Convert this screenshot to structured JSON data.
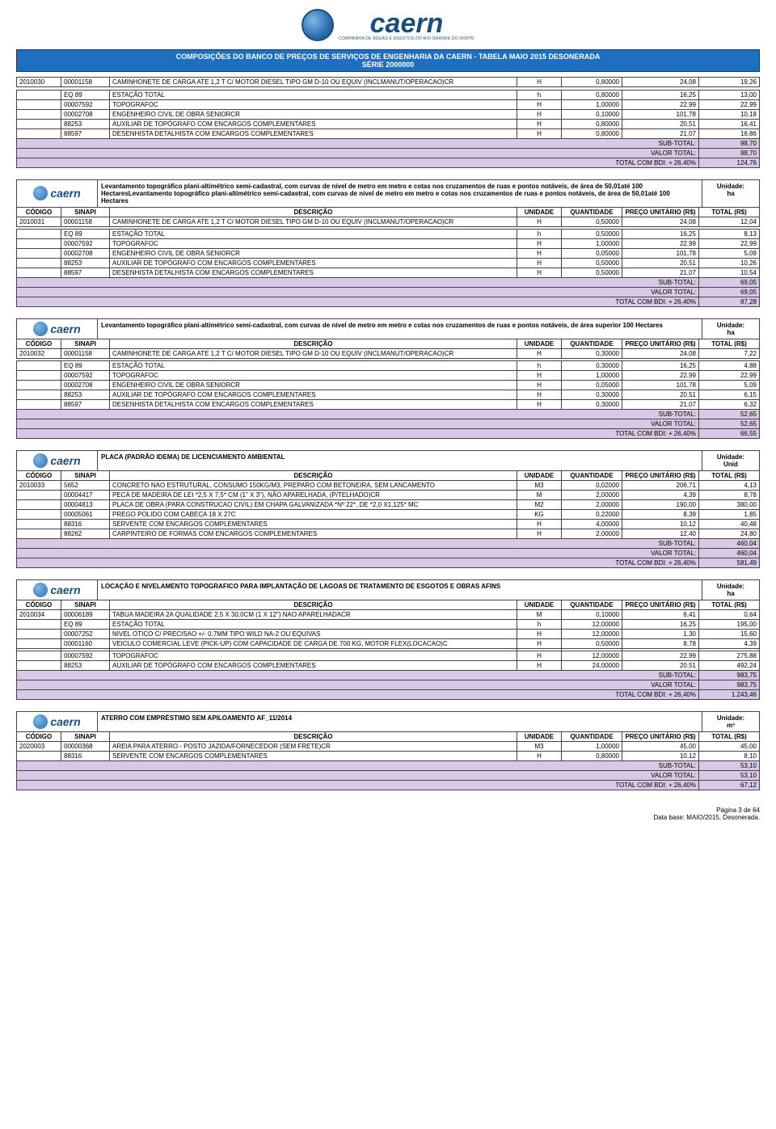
{
  "doc": {
    "brand": "caern",
    "brand_sub": "COMPANHIA DE ÁGUAS E ESGOTOS DO RIO GRANDE DO NORTE",
    "title_line1": "COMPOSIÇÕES DO BANCO DE PREÇOS DE SERVIÇOS DE ENGENHARIA DA CAERN - TABELA MAIO 2015 DESONERADA",
    "title_line2": "SÉRIE 2000000",
    "unidade_label": "Unidade:",
    "headers": {
      "codigo": "CÓDIGO",
      "sinapi": "SINAPI",
      "descricao": "DESCRIÇÃO",
      "unidade": "UNIDADE",
      "quantidade": "QUANTIDADE",
      "preco": "PREÇO UNITÁRIO (R$)",
      "total": "TOTAL (R$)"
    },
    "subtotal_label": "SUB-TOTAL:",
    "valortotal_label": "VALOR TOTAL:",
    "bdi_label": "TOTAL COM BDI: + 26,40%",
    "footer_page": "Página 3 de 64",
    "footer_src": "Data base: MAIO/2015, Desonerada."
  },
  "colors": {
    "title_bg": "#1e6fbd",
    "title_fg": "#ffffff",
    "shade_bg": "#d9c9e6",
    "brand": "#1b4f7a",
    "border": "#444444"
  },
  "top_table": {
    "codigo": "2010030",
    "sinapi": "00001158",
    "desc": "CAMINHONETE DE CARGA ATE 1,2 T C/ MOTOR DIESEL TIPO GM D-10 OU EQUIV (INCLMANUT/OPERACAO)CR",
    "unid": "H",
    "qt": "0,80000",
    "preco": "24,08",
    "total": "19,26",
    "rows": [
      {
        "sinapi": "EQ 89",
        "desc": "ESTAÇÃO TOTAL",
        "unid": "h",
        "qt": "0,80000",
        "preco": "16,25",
        "total": "13,00"
      },
      {
        "sinapi": "00007592",
        "desc": "TOPOGRAFOC",
        "unid": "H",
        "qt": "1,00000",
        "preco": "22,99",
        "total": "22,99"
      },
      {
        "sinapi": "00002708",
        "desc": "ENGENHEIRO CIVIL DE OBRA SENIORCR",
        "unid": "H",
        "qt": "0,10000",
        "preco": "101,78",
        "total": "10,18"
      },
      {
        "sinapi": "88253",
        "desc": "AUXILIAR DE TOPÓGRAFO COM ENCARGOS COMPLEMENTARES",
        "unid": "H",
        "qt": "0,80000",
        "preco": "20,51",
        "total": "16,41"
      },
      {
        "sinapi": "88597",
        "desc": "DESENHISTA DETALHISTA COM ENCARGOS COMPLEMENTARES",
        "unid": "H",
        "qt": "0,80000",
        "preco": "21,07",
        "total": "16,86"
      }
    ],
    "subtotal": "98,70",
    "valortotal": "98,70",
    "bdi": "124,76"
  },
  "sections": [
    {
      "title": "Levantamento topográfico plani-altimétrico semi-cadastral, com curvas de nível de metro em metro e cotas nos cruzamentos de ruas e pontos notáveis, de área de 50,01até 100 HectaresLevantamento topográfico plani-altimétrico semi-cadastral, com curvas de nível de metro em metro e cotas nos cruzamentos de ruas e pontos notáveis, de área de 50,01até 100 Hectares",
      "unit": "ha",
      "main": {
        "codigo": "2010031",
        "sinapi": "00001158",
        "desc": "CAMINHONETE DE CARGA ATE 1,2 T C/ MOTOR DIESEL TIPO GM D-10 OU EQUIV (INCLMANUT/OPERACAO)CR",
        "unid": "H",
        "qt": "0,50000",
        "preco": "24,08",
        "total": "12,04"
      },
      "rows": [
        {
          "sinapi": "EQ 89",
          "desc": "ESTAÇÃO TOTAL",
          "unid": "h",
          "qt": "0,50000",
          "preco": "16,25",
          "total": "8,13"
        },
        {
          "sinapi": "00007592",
          "desc": "TOPOGRAFOC",
          "unid": "H",
          "qt": "1,00000",
          "preco": "22,99",
          "total": "22,99"
        },
        {
          "sinapi": "00002708",
          "desc": "ENGENHEIRO CIVIL DE OBRA SENIORCR",
          "unid": "H",
          "qt": "0,05000",
          "preco": "101,78",
          "total": "5,09"
        },
        {
          "sinapi": "88253",
          "desc": "AUXILIAR DE TOPÓGRAFO COM ENCARGOS COMPLEMENTARES",
          "unid": "H",
          "qt": "0,50000",
          "preco": "20,51",
          "total": "10,26"
        },
        {
          "sinapi": "88597",
          "desc": "DESENHISTA DETALHISTA COM ENCARGOS COMPLEMENTARES",
          "unid": "H",
          "qt": "0,50000",
          "preco": "21,07",
          "total": "10,54"
        }
      ],
      "subtotal": "69,05",
      "valortotal": "69,05",
      "bdi": "87,28"
    },
    {
      "title": "Levantamento topográfico plani-altimétrico semi-cadastral, com curvas de nível de metro em metro e cotas nos cruzamentos de ruas e pontos notáveis, de área superior 100 Hectares",
      "unit": "ha",
      "main": {
        "codigo": "2010032",
        "sinapi": "00001158",
        "desc": "CAMINHONETE DE CARGA ATE 1,2 T C/ MOTOR DIESEL TIPO GM D-10 OU EQUIV (INCLMANUT/OPERACAO)CR",
        "unid": "H",
        "qt": "0,30000",
        "preco": "24,08",
        "total": "7,22"
      },
      "rows": [
        {
          "sinapi": "EQ 89",
          "desc": "ESTAÇÃO TOTAL",
          "unid": "h",
          "qt": "0,30000",
          "preco": "16,25",
          "total": "4,88"
        },
        {
          "sinapi": "00007592",
          "desc": "TOPOGRAFOC",
          "unid": "H",
          "qt": "1,00000",
          "preco": "22,99",
          "total": "22,99"
        },
        {
          "sinapi": "00002708",
          "desc": "ENGENHEIRO CIVIL DE OBRA SENIORCR",
          "unid": "H",
          "qt": "0,05000",
          "preco": "101,78",
          "total": "5,09"
        },
        {
          "sinapi": "88253",
          "desc": "AUXILIAR DE TOPÓGRAFO COM ENCARGOS COMPLEMENTARES",
          "unid": "H",
          "qt": "0,30000",
          "preco": "20,51",
          "total": "6,15"
        },
        {
          "sinapi": "88597",
          "desc": "DESENHISTA DETALHISTA COM ENCARGOS COMPLEMENTARES",
          "unid": "H",
          "qt": "0,30000",
          "preco": "21,07",
          "total": "6,32"
        }
      ],
      "subtotal": "52,65",
      "valortotal": "52,65",
      "bdi": "66,55"
    },
    {
      "title": "PLACA (PADRÃO IDEMA) DE LICENCIAMENTO AMBIENTAL",
      "unit": "Unid",
      "main": null,
      "codigo": "2010033",
      "rows": [
        {
          "sinapi": "5652",
          "desc": "CONCRETO NAO ESTRUTURAL, CONSUMO 150KG/M3, PREPARO COM BETONEIRA, SEM LANCAMENTO",
          "unid": "M3",
          "qt": "0,02000",
          "preco": "206,71",
          "total": "4,13"
        },
        {
          "sinapi": "00004417",
          "desc": "PECA DE MADEIRA DE LEI *2,5 X 7,5* CM (1\" X 3\"), NÃO APARELHADA, (P/TELHADO)CR",
          "unid": "M",
          "qt": "2,00000",
          "preco": "4,39",
          "total": "8,78"
        },
        {
          "sinapi": "00004813",
          "desc": "PLACA DE OBRA (PARA CONSTRUCAO CIVIL) EM CHAPA GALVANIZADA *Nº 22*, DE *2,0 X1,125* MC",
          "unid": "M2",
          "qt": "2,00000",
          "preco": "190,00",
          "total": "380,00"
        },
        {
          "sinapi": "00005061",
          "desc": "PREGO POLIDO COM CABECA 18 X 27C",
          "unid": "KG",
          "qt": "0,22000",
          "preco": "8,39",
          "total": "1,85"
        },
        {
          "sinapi": "88316",
          "desc": "SERVENTE COM ENCARGOS COMPLEMENTARES",
          "unid": "H",
          "qt": "4,00000",
          "preco": "10,12",
          "total": "40,48"
        },
        {
          "sinapi": "88262",
          "desc": "CARPINTEIRO DE FORMAS COM ENCARGOS COMPLEMENTARES",
          "unid": "H",
          "qt": "2,00000",
          "preco": "12,40",
          "total": "24,80"
        }
      ],
      "subtotal": "460,04",
      "valortotal": "460,04",
      "bdi": "581,49"
    },
    {
      "title": "LOCAÇÃO E NIVELAMENTO TOPOGRAFICO PARA IMPLANTAÇÃO DE LAGOAS DE TRATAMENTO DE ESGOTOS  E OBRAS AFINS",
      "unit": "ha",
      "main": null,
      "codigo": "2010034",
      "rows": [
        {
          "sinapi": "00006189",
          "desc": "TABUA MADEIRA 2A QUALIDADE 2,5 X 30,0CM (1 X 12\") NAO APARELHADACR",
          "unid": "M",
          "qt": "0,10000",
          "preco": "6,41",
          "total": "0,64"
        },
        {
          "sinapi": "EQ 89",
          "desc": "ESTAÇÃO TOTAL",
          "unid": "h",
          "qt": "12,00000",
          "preco": "16,25",
          "total": "195,00"
        },
        {
          "sinapi": "00007252",
          "desc": "NIVEL OTICO C/ PRECISAO +/- 0,7MM TIPO WILD NA-2 OU EQUIVAS",
          "unid": "H",
          "qt": "12,00000",
          "preco": "1,30",
          "total": "15,60"
        },
        {
          "sinapi": "00001160",
          "desc": "VEICULO COMERCIAL LEVE (PICK-UP) COM CAPACIDADE DE CARGA DE 700 KG, MOTOR FLEX(LOCACAO)C",
          "unid": "H",
          "qt": "0,50000",
          "preco": "8,78",
          "total": "4,39"
        },
        {
          "sinapi": "",
          "desc": "",
          "unid": "",
          "qt": "",
          "preco": "",
          "total": ""
        },
        {
          "sinapi": "00007592",
          "desc": "TOPOGRAFOC",
          "unid": "H",
          "qt": "12,00000",
          "preco": "22,99",
          "total": "275,88"
        },
        {
          "sinapi": "88253",
          "desc": "AUXILIAR DE TOPÓGRAFO COM ENCARGOS COMPLEMENTARES",
          "unid": "H",
          "qt": "24,00000",
          "preco": "20,51",
          "total": "492,24"
        }
      ],
      "subtotal": "983,75",
      "valortotal": "983,75",
      "bdi": "1.243,46"
    },
    {
      "title": "ATERRO COM EMPRÉSTIMO SEM APILOAMENTO AF_11/2014",
      "unit": "m³",
      "main": null,
      "codigo": "2020003",
      "rows": [
        {
          "sinapi": "00000368",
          "desc": "AREIA PARA ATERRO - POSTO JAZIDA/FORNECEDOR (SEM FRETE)CR",
          "unid": "M3",
          "qt": "1,00000",
          "preco": "45,00",
          "total": "45,00"
        },
        {
          "sinapi": "88316",
          "desc": "SERVENTE COM ENCARGOS COMPLEMENTARES",
          "unid": "H",
          "qt": "0,80000",
          "preco": "10,12",
          "total": "8,10"
        }
      ],
      "subtotal": "53,10",
      "valortotal": "53,10",
      "bdi": "67,12"
    }
  ]
}
